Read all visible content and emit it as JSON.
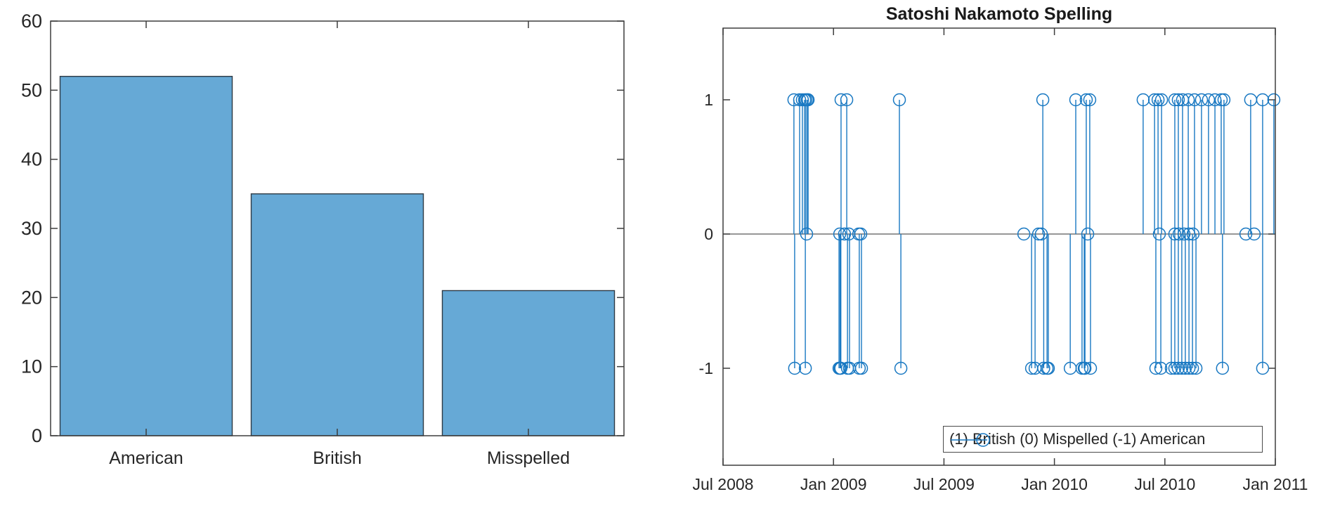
{
  "figure": {
    "background": "#ffffff",
    "axes_line_color": "#3d3d3d",
    "tick_text_color": "#262626"
  },
  "chart_data": [
    {
      "type": "bar",
      "title": "",
      "categories": [
        "American",
        "British",
        "Misspelled"
      ],
      "values": [
        52,
        35,
        21
      ],
      "ylim": [
        0,
        60
      ],
      "yticks": [
        0,
        10,
        20,
        30,
        40,
        50,
        60
      ],
      "xlabel": "",
      "ylabel": "",
      "grid": false,
      "bar_color": "#66A9D6",
      "bar_edge_color": "#2e3a45",
      "legend_position": "none"
    },
    {
      "type": "stem",
      "title": "Satoshi Nakamoto Spelling",
      "xlim_months_from_jul2008": [
        0,
        30
      ],
      "xtick_months": [
        0,
        6,
        12,
        18,
        24,
        30
      ],
      "xtick_labels": [
        "Jul 2008",
        "Jan 2009",
        "Jul 2009",
        "Jan 2010",
        "Jul 2010",
        "Jan 2011"
      ],
      "yticks": [
        1,
        0,
        -1
      ],
      "ytick_labels": [
        "1",
        "0",
        "-1"
      ],
      "ylim": [
        -1.72,
        1.53
      ],
      "grid": false,
      "legend": "(1) British (0) Mispelled (-1) American",
      "legend_position": "south-east-inside",
      "stem_color": "#1878C2",
      "baseline_value": 0,
      "baseline_color": "#595959",
      "points": [
        [
          3.85,
          1
        ],
        [
          3.89,
          -1
        ],
        [
          4.16,
          1
        ],
        [
          4.31,
          1
        ],
        [
          4.43,
          1
        ],
        [
          4.47,
          -1
        ],
        [
          4.5,
          1
        ],
        [
          4.54,
          0
        ],
        [
          4.58,
          1
        ],
        [
          4.62,
          1
        ],
        [
          6.3,
          -1
        ],
        [
          6.34,
          0
        ],
        [
          6.36,
          -1
        ],
        [
          6.4,
          -1
        ],
        [
          6.41,
          1
        ],
        [
          6.6,
          0
        ],
        [
          6.72,
          1
        ],
        [
          6.76,
          -1
        ],
        [
          6.83,
          0
        ],
        [
          6.87,
          -1
        ],
        [
          7.37,
          0
        ],
        [
          7.4,
          -1
        ],
        [
          7.48,
          0
        ],
        [
          7.52,
          -1
        ],
        [
          9.58,
          1
        ],
        [
          9.66,
          -1
        ],
        [
          16.34,
          0
        ],
        [
          16.76,
          -1
        ],
        [
          16.95,
          -1
        ],
        [
          17.14,
          0
        ],
        [
          17.29,
          0
        ],
        [
          17.37,
          1
        ],
        [
          17.42,
          -1
        ],
        [
          17.6,
          -1
        ],
        [
          17.67,
          -1
        ],
        [
          18.86,
          -1
        ],
        [
          19.16,
          1
        ],
        [
          19.5,
          -1
        ],
        [
          19.62,
          -1
        ],
        [
          19.66,
          -1
        ],
        [
          19.73,
          1
        ],
        [
          19.81,
          0
        ],
        [
          19.92,
          1
        ],
        [
          19.96,
          -1
        ],
        [
          22.82,
          1
        ],
        [
          23.44,
          1
        ],
        [
          23.51,
          -1
        ],
        [
          23.63,
          1
        ],
        [
          23.7,
          0
        ],
        [
          23.78,
          -1
        ],
        [
          23.82,
          1
        ],
        [
          24.35,
          -1
        ],
        [
          24.54,
          1
        ],
        [
          24.54,
          0
        ],
        [
          24.54,
          -1
        ],
        [
          24.73,
          1
        ],
        [
          24.73,
          -1
        ],
        [
          24.77,
          0
        ],
        [
          24.92,
          -1
        ],
        [
          24.96,
          1
        ],
        [
          25.04,
          0
        ],
        [
          25.11,
          -1
        ],
        [
          25.27,
          1
        ],
        [
          25.31,
          0
        ],
        [
          25.31,
          -1
        ],
        [
          25.5,
          -1
        ],
        [
          25.53,
          0
        ],
        [
          25.61,
          1
        ],
        [
          25.69,
          -1
        ],
        [
          25.99,
          1
        ],
        [
          26.37,
          1
        ],
        [
          26.72,
          1
        ],
        [
          27.06,
          1
        ],
        [
          27.13,
          -1
        ],
        [
          27.21,
          1
        ],
        [
          28.4,
          0
        ],
        [
          28.66,
          1
        ],
        [
          28.85,
          0
        ],
        [
          29.31,
          1
        ],
        [
          29.31,
          -1
        ],
        [
          29.92,
          1
        ]
      ]
    }
  ]
}
